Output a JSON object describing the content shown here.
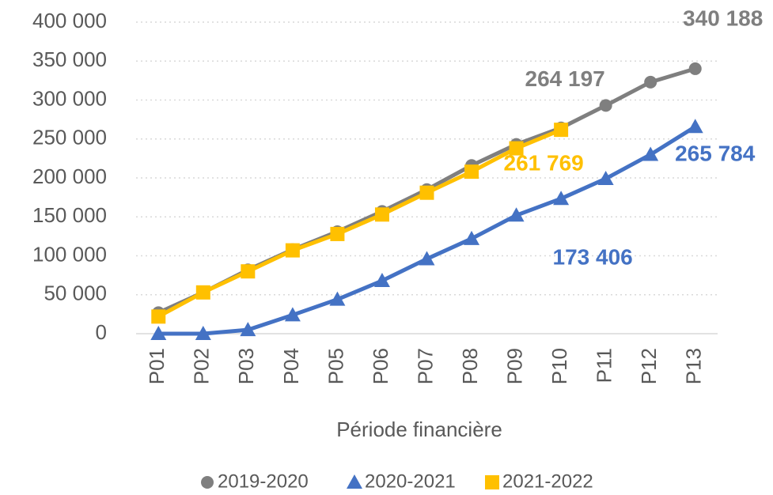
{
  "chart_data": {
    "type": "line",
    "x_label": "Période financière",
    "categories": [
      "P01",
      "P02",
      "P03",
      "P04",
      "P05",
      "P06",
      "P07",
      "P08",
      "P09",
      "P10",
      "P11",
      "P12",
      "P13"
    ],
    "ylim": [
      0,
      400000
    ],
    "yticks": [
      0,
      {
        "value": 50000,
        "label": "50 000"
      },
      {
        "value": 100000,
        "label": "100 000"
      },
      {
        "value": 150000,
        "label": "150 000"
      },
      {
        "value": 200000,
        "label": "200 000"
      },
      {
        "value": 250000,
        "label": "250 000"
      },
      {
        "value": 300000,
        "label": "300 000"
      },
      {
        "value": 350000,
        "label": "350 000"
      },
      {
        "value": 400000,
        "label": "400 000"
      }
    ],
    "grid": true,
    "legend": "bottom",
    "series": [
      {
        "name": "2019-2020",
        "color": "#7f7f7f",
        "marker": "circle",
        "values": [
          27000,
          53000,
          82000,
          108000,
          131000,
          157000,
          185000,
          216000,
          243000,
          264197,
          293000,
          323000,
          340188
        ],
        "value_labels": [
          null,
          null,
          null,
          null,
          null,
          null,
          null,
          null,
          null,
          "264 197",
          null,
          null,
          "340 188"
        ]
      },
      {
        "name": "2020-2021",
        "color": "#4472c4",
        "marker": "triangle",
        "values": [
          0,
          0,
          5000,
          24000,
          44000,
          68000,
          96000,
          122000,
          152000,
          173406,
          199000,
          230000,
          265784
        ],
        "value_labels": [
          null,
          null,
          null,
          null,
          null,
          null,
          null,
          null,
          null,
          "173 406",
          null,
          null,
          "265 784"
        ]
      },
      {
        "name": "2021-2022",
        "color": "#ffc000",
        "marker": "square",
        "values": [
          22000,
          53000,
          80000,
          107000,
          128000,
          153000,
          181000,
          208000,
          238000,
          261769,
          null,
          null,
          null
        ],
        "value_labels": [
          null,
          null,
          null,
          null,
          null,
          null,
          null,
          null,
          null,
          "261 769",
          null,
          null,
          null
        ]
      }
    ]
  }
}
